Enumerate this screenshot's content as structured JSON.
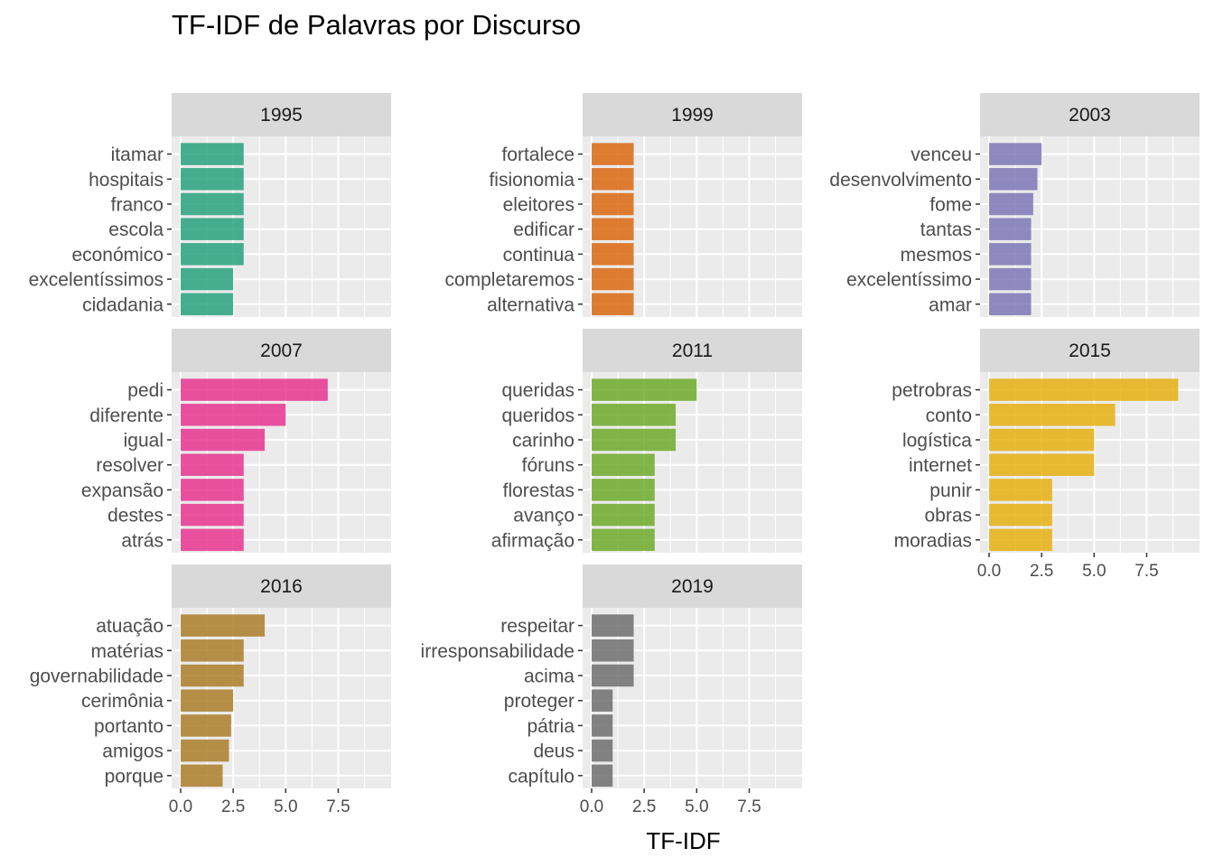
{
  "chart_data": {
    "type": "bar",
    "orientation": "horizontal",
    "facets": "3 columns x 3 rows",
    "title": "TF-IDF de Palavras por Discurso",
    "xlabel": "TF-IDF",
    "ylabel": "",
    "xlim": [
      0,
      9.5
    ],
    "x_ticks": [
      "0.0",
      "2.5",
      "5.0",
      "7.5"
    ],
    "x_tick_values": [
      0,
      2.5,
      5,
      7.5
    ],
    "grid": true,
    "legend": "none",
    "panels": [
      {
        "name": "1995",
        "color": "#1b9e77",
        "categories": [
          "itamar",
          "hospitais",
          "franco",
          "escola",
          "económico",
          "excelentíssimos",
          "cidadania"
        ],
        "values": [
          3,
          3,
          3,
          3,
          3,
          2.5,
          2.5
        ]
      },
      {
        "name": "1999",
        "color": "#d95f02",
        "categories": [
          "fortalece",
          "fisionomia",
          "eleitores",
          "edificar",
          "continua",
          "completaremos",
          "alternativa"
        ],
        "values": [
          2,
          2,
          2,
          2,
          2,
          2,
          2
        ]
      },
      {
        "name": "2003",
        "color": "#7570b3",
        "categories": [
          "venceu",
          "desenvolvimento",
          "fome",
          "tantas",
          "mesmos",
          "excelentíssimo",
          "amar"
        ],
        "values": [
          2.5,
          2.3,
          2.1,
          2,
          2,
          2,
          2
        ]
      },
      {
        "name": "2007",
        "color": "#e7298a",
        "categories": [
          "pedi",
          "diferente",
          "igual",
          "resolver",
          "expansão",
          "destes",
          "atrás"
        ],
        "values": [
          7,
          5,
          4,
          3,
          3,
          3,
          3
        ]
      },
      {
        "name": "2011",
        "color": "#66a61e",
        "categories": [
          "queridas",
          "queridos",
          "carinho",
          "fóruns",
          "florestas",
          "avanço",
          "afirmação"
        ],
        "values": [
          5,
          4,
          4,
          3,
          3,
          3,
          3
        ]
      },
      {
        "name": "2015",
        "color": "#e6ab02",
        "categories": [
          "petrobras",
          "conto",
          "logística",
          "internet",
          "punir",
          "obras",
          "moradias"
        ],
        "values": [
          9,
          6,
          5,
          5,
          3,
          3,
          3
        ]
      },
      {
        "name": "2016",
        "color": "#a6761d",
        "categories": [
          "atuação",
          "matérias",
          "governabilidade",
          "cerimônia",
          "portanto",
          "amigos",
          "porque"
        ],
        "values": [
          4,
          3,
          3,
          2.5,
          2.4,
          2.3,
          2
        ]
      },
      {
        "name": "2019",
        "color": "#666666",
        "categories": [
          "respeitar",
          "irresponsabilidade",
          "acima",
          "proteger",
          "pátria",
          "deus",
          "capítulo"
        ],
        "values": [
          2,
          2,
          2,
          1,
          1,
          1,
          1
        ]
      }
    ]
  }
}
